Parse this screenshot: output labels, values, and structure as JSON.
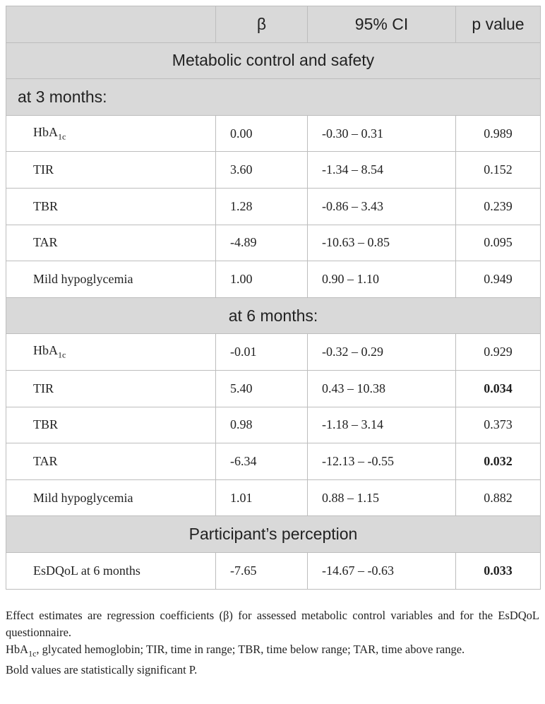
{
  "table": {
    "header": [
      "β",
      "95% CI",
      "p value"
    ],
    "rows": [
      {
        "section": "Metabolic control and safety",
        "align": "center"
      },
      {
        "section": "at 3 months:",
        "align": "left"
      },
      {
        "cells": [
          {
            "text": "HbA",
            "sub": "1c"
          },
          "0.00",
          "-0.30 – 0.31",
          "0.989"
        ],
        "bold_p": false
      },
      {
        "cells": [
          "TIR",
          "3.60",
          "-1.34 – 8.54",
          "0.152"
        ],
        "bold_p": false
      },
      {
        "cells": [
          "TBR",
          "1.28",
          "-0.86 – 3.43",
          "0.239"
        ],
        "bold_p": false
      },
      {
        "cells": [
          "TAR",
          "-4.89",
          "-10.63 – 0.85",
          "0.095"
        ],
        "bold_p": false
      },
      {
        "cells": [
          "Mild hypoglycemia",
          "1.00",
          "0.90 – 1.10",
          "0.949"
        ],
        "bold_p": false
      },
      {
        "section": "at 6 months:",
        "align": "center"
      },
      {
        "cells": [
          {
            "text": "HbA",
            "sub": "1c"
          },
          "-0.01",
          "-0.32 – 0.29",
          "0.929"
        ],
        "bold_p": false
      },
      {
        "cells": [
          "TIR",
          "5.40",
          "0.43 – 10.38",
          "0.034"
        ],
        "bold_p": true
      },
      {
        "cells": [
          "TBR",
          "0.98",
          "-1.18 – 3.14",
          "0.373"
        ],
        "bold_p": false
      },
      {
        "cells": [
          "TAR",
          "-6.34",
          "-12.13 – -0.55",
          "0.032"
        ],
        "bold_p": true
      },
      {
        "cells": [
          "Mild hypoglycemia",
          "1.01",
          "0.88 – 1.15",
          "0.882"
        ],
        "bold_p": false
      },
      {
        "section": "Participant’s perception",
        "align": "center"
      },
      {
        "cells": [
          "EsDQoL at 6 months",
          "-7.65",
          "-14.67 – -0.63",
          "0.033"
        ],
        "bold_p": true
      }
    ]
  },
  "footnotes": [
    [
      {
        "text": "Effect estimates are regression coefficients (β) for assessed metabolic control variables and for the EsDQoL questionnaire."
      }
    ],
    [
      {
        "text": "HbA",
        "sub": "1c"
      },
      {
        "text": ", glycated hemoglobin; TIR, time in range; TBR, time below range; TAR, time above range."
      }
    ],
    [
      {
        "text": "Bold values are statistically significant P."
      }
    ]
  ]
}
